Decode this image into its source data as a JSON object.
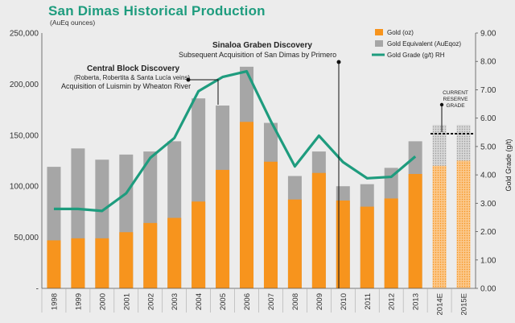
{
  "title": "San Dimas Historical Production",
  "subtitle": "(AuEq ounces)",
  "colors": {
    "gold": "#f7941d",
    "gold_equivalent": "#a6a6a6",
    "gold_grade": "#1e9c7e",
    "title": "#1e9c7e",
    "background": "#ececec"
  },
  "chart_data": {
    "type": "bar",
    "categories": [
      "1998",
      "1999",
      "2000",
      "2001",
      "2002",
      "2003",
      "2004",
      "2005",
      "2006",
      "2007",
      "2008",
      "2009",
      "2010",
      "2011",
      "2012",
      "2013",
      "2014E",
      "2015E"
    ],
    "series": [
      {
        "name": "Gold (oz)",
        "type": "bar",
        "values": [
          47000,
          49000,
          49000,
          55000,
          64000,
          69000,
          85000,
          116000,
          163000,
          124000,
          87000,
          113000,
          86000,
          80000,
          88000,
          112000,
          120000,
          125000
        ]
      },
      {
        "name": "Gold Equivalent (AuEqoz)",
        "type": "bar",
        "values": [
          119000,
          137000,
          126000,
          131000,
          134000,
          144000,
          186000,
          179000,
          217000,
          162000,
          110000,
          134000,
          100000,
          102000,
          118000,
          144000,
          160000,
          160000
        ]
      },
      {
        "name": "Gold Grade (g/t) RH",
        "type": "line",
        "axis": "right",
        "values": [
          2.8,
          2.8,
          2.73,
          3.35,
          4.6,
          5.3,
          6.95,
          7.45,
          7.65,
          5.9,
          4.3,
          5.38,
          4.45,
          3.88,
          3.93,
          4.65,
          null,
          null
        ]
      }
    ],
    "projected_categories": [
      "2014E",
      "2015E"
    ],
    "ylabel_right": "Gold Grade (g/t)",
    "ylim": [
      0,
      250000
    ],
    "ylim_right": [
      0,
      9
    ],
    "y_ticks": [
      "250,000",
      "200,000",
      "150,000",
      "100,000",
      "50,000",
      "-"
    ],
    "y_ticks_right": [
      "9.00",
      "8.00",
      "7.00",
      "6.00",
      "5.00",
      "4.00",
      "3.00",
      "2.00",
      "1.00",
      "0.00"
    ],
    "legend": [
      "Gold (oz)",
      "Gold Equivalent (AuEqoz)",
      "Gold Grade (g/t) RH"
    ],
    "legend_position": "top-right",
    "reserve_grade": 5.45,
    "annotations": {
      "sinaloa_title": "Sinaloa Graben Discovery",
      "sinaloa_text": "Subsequent Acquisition of San Dimas by Primero",
      "central_title": "Central Block Discovery",
      "central_sub": "(Roberta, Robertita & Santa Lucía veins)",
      "central_text": "Acquisition of Luismin by Wheaton River",
      "reserve_line1": "CURRENT",
      "reserve_line2": "RESERVE",
      "reserve_line3": "GRADE"
    }
  }
}
